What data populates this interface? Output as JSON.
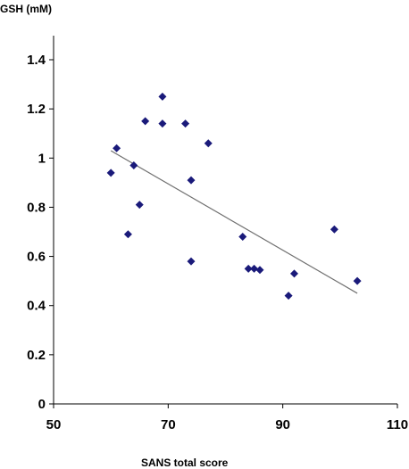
{
  "chart_data": {
    "type": "scatter",
    "title": "",
    "xlabel": "SANS total score",
    "ylabel": "GSH (mM)",
    "xlim": [
      50,
      110
    ],
    "ylim": [
      0,
      1.4
    ],
    "x_ticks": [
      50,
      70,
      90,
      110
    ],
    "x_tick_labels": [
      "50",
      "70",
      "90",
      "110"
    ],
    "y_ticks": [
      0,
      0.2,
      0.4,
      0.6,
      0.8,
      1.0,
      1.2,
      1.4
    ],
    "y_tick_labels": [
      "0",
      "0.2",
      "0.4",
      "0.6",
      "0.8",
      "1",
      "1.2",
      "1.4"
    ],
    "grid": false,
    "legend": "none",
    "marker": "diamond",
    "marker_color": "#1a1a7a",
    "trendline_color": "#707070",
    "points": [
      {
        "x": 60,
        "y": 0.94
      },
      {
        "x": 61,
        "y": 1.04
      },
      {
        "x": 63,
        "y": 0.69
      },
      {
        "x": 64,
        "y": 0.97
      },
      {
        "x": 65,
        "y": 0.81
      },
      {
        "x": 66,
        "y": 1.15
      },
      {
        "x": 69,
        "y": 1.25
      },
      {
        "x": 69,
        "y": 1.14
      },
      {
        "x": 73,
        "y": 1.14
      },
      {
        "x": 74,
        "y": 0.91
      },
      {
        "x": 74,
        "y": 0.58
      },
      {
        "x": 77,
        "y": 1.06
      },
      {
        "x": 83,
        "y": 0.68
      },
      {
        "x": 84,
        "y": 0.55
      },
      {
        "x": 85,
        "y": 0.55
      },
      {
        "x": 86,
        "y": 0.545
      },
      {
        "x": 91,
        "y": 0.44
      },
      {
        "x": 92,
        "y": 0.53
      },
      {
        "x": 99,
        "y": 0.71
      },
      {
        "x": 103,
        "y": 0.5
      }
    ],
    "trendline": {
      "x1": 60,
      "y1": 1.03,
      "x2": 103,
      "y2": 0.45
    }
  }
}
